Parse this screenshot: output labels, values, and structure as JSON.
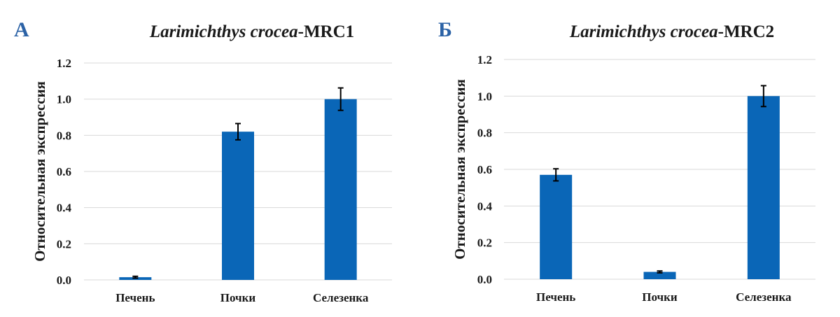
{
  "panels": [
    {
      "letter": "A"
    },
    {
      "letter": "Б"
    }
  ],
  "chart_data": [
    {
      "type": "bar",
      "title_italic": "Larimichthys crocea",
      "title_rest": "-MRC1",
      "ylabel": "Относительная экспрессия",
      "xlabel": "",
      "categories": [
        "Печень",
        "Почки",
        "Селезенка"
      ],
      "values": [
        0.015,
        0.82,
        1.0
      ],
      "errors": [
        0.005,
        0.045,
        0.062
      ],
      "ylim": [
        0,
        1.2
      ],
      "yticks": [
        "0.0",
        "0.2",
        "0.4",
        "0.6",
        "0.8",
        "1.0",
        "1.2"
      ],
      "grid": true,
      "color": "#0a66b7"
    },
    {
      "type": "bar",
      "title_italic": "Larimichthys crocea",
      "title_rest": "-MRC2",
      "ylabel": "Относительная экспрессия",
      "xlabel": "",
      "categories": [
        "Печень",
        "Почки",
        "Селезенка"
      ],
      "values": [
        0.57,
        0.04,
        1.0
      ],
      "errors": [
        0.033,
        0.005,
        0.057
      ],
      "ylim": [
        0,
        1.2
      ],
      "yticks": [
        "0.0",
        "0.2",
        "0.4",
        "0.6",
        "0.8",
        "1.0",
        "1.2"
      ],
      "grid": true,
      "color": "#0a66b7"
    }
  ]
}
